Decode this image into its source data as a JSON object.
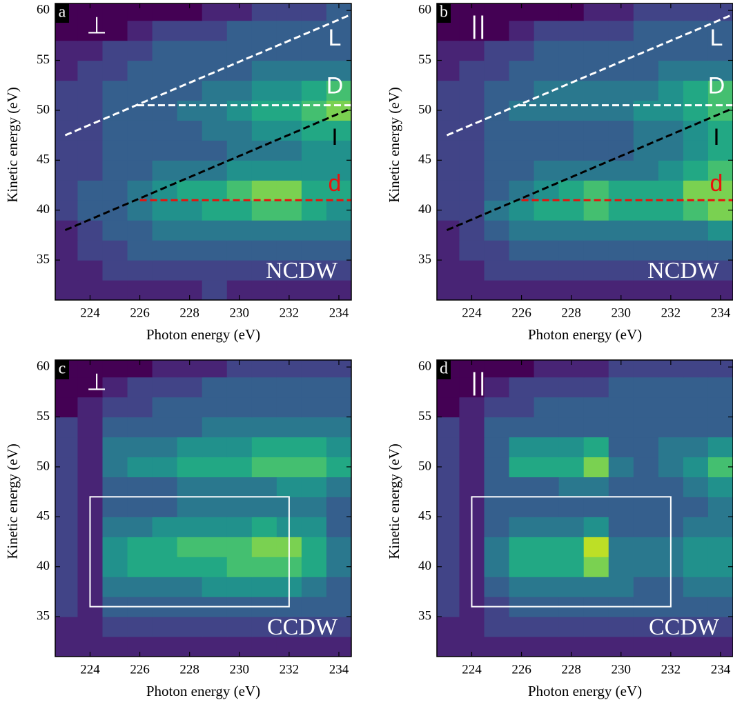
{
  "chart_data": [
    {
      "type": "heatmap",
      "panel": "a",
      "polarization": "⊥",
      "phase": "NCDW",
      "x_label": "Photon energy (eV)",
      "y_label": "Kinetic energy (eV)",
      "xlim": [
        222.6,
        234.5
      ],
      "ylim": [
        31,
        60.7
      ],
      "xticks": [
        224,
        226,
        228,
        230,
        232,
        234
      ],
      "yticks": [
        35,
        40,
        45,
        50,
        55,
        60
      ],
      "x_edges": [
        222.5,
        223.5,
        224.5,
        225.5,
        226.5,
        227.5,
        228.5,
        229.5,
        230.5,
        231.5,
        232.5,
        233.5,
        234.5
      ],
      "y_edges": [
        31,
        33,
        35,
        37,
        39,
        41,
        43,
        45,
        47,
        49,
        51,
        53,
        55,
        57,
        59,
        61
      ],
      "zlim": [
        0,
        10
      ],
      "colormap": [
        "#440154",
        "#482475",
        "#414487",
        "#355f8d",
        "#2a788e",
        "#21918c",
        "#22a884",
        "#44bf70",
        "#7ad151",
        "#bddf26",
        "#fde725"
      ],
      "z": [
        [
          1,
          1,
          1,
          1,
          1,
          1,
          2,
          1,
          1,
          1,
          1,
          1
        ],
        [
          1,
          1,
          2,
          2,
          2,
          2,
          2,
          2,
          2,
          2,
          2,
          2
        ],
        [
          1,
          2,
          2,
          3,
          3,
          3,
          3,
          3,
          3,
          3,
          3,
          3
        ],
        [
          1,
          2,
          3,
          3,
          4,
          4,
          4,
          4,
          4,
          4,
          4,
          4
        ],
        [
          2,
          3,
          3,
          4,
          5,
          5,
          6,
          6,
          7,
          7,
          6,
          5
        ],
        [
          2,
          3,
          3,
          4,
          5,
          6,
          6,
          7,
          8,
          8,
          6,
          6
        ],
        [
          2,
          2,
          3,
          3,
          4,
          4,
          4,
          5,
          5,
          5,
          5,
          5
        ],
        [
          2,
          2,
          3,
          3,
          3,
          3,
          3,
          4,
          4,
          4,
          5,
          5
        ],
        [
          2,
          2,
          3,
          3,
          3,
          3,
          4,
          4,
          5,
          5,
          6,
          6
        ],
        [
          2,
          2,
          3,
          3,
          3,
          4,
          4,
          5,
          6,
          6,
          7,
          8
        ],
        [
          2,
          2,
          3,
          3,
          3,
          3,
          4,
          4,
          5,
          5,
          6,
          7
        ],
        [
          1,
          2,
          2,
          3,
          3,
          3,
          3,
          3,
          4,
          4,
          4,
          4
        ],
        [
          1,
          1,
          2,
          2,
          3,
          3,
          3,
          3,
          3,
          3,
          3,
          3
        ],
        [
          0,
          0,
          0,
          1,
          2,
          2,
          2,
          3,
          3,
          3,
          3,
          3
        ],
        [
          0,
          0,
          0,
          0,
          0,
          0,
          1,
          1,
          2,
          2,
          2,
          3
        ]
      ],
      "lines": [
        {
          "label": "L",
          "color": "#ffffff",
          "x": [
            223,
            234.5
          ],
          "y": [
            47.5,
            59.6
          ]
        },
        {
          "label": "D",
          "color": "#ffffff",
          "x": [
            225.9,
            234.5
          ],
          "y": [
            50.5,
            50.5
          ]
        },
        {
          "label": "I",
          "color": "#000000",
          "x": [
            223,
            234.5
          ],
          "y": [
            38,
            50.2
          ]
        },
        {
          "label": "d",
          "color": "#e8120c",
          "x": [
            226,
            234.5
          ],
          "y": [
            41,
            41
          ]
        }
      ]
    },
    {
      "type": "heatmap",
      "panel": "b",
      "polarization": "||",
      "phase": "NCDW",
      "x_label": "Photon energy (eV)",
      "y_label": "Kinetic energy (eV)",
      "xlim": [
        222.6,
        234.5
      ],
      "ylim": [
        31,
        60.7
      ],
      "xticks": [
        224,
        226,
        228,
        230,
        232,
        234
      ],
      "yticks": [
        35,
        40,
        45,
        50,
        55,
        60
      ],
      "x_edges": [
        222.5,
        223.5,
        224.5,
        225.5,
        226.5,
        227.5,
        228.5,
        229.5,
        230.5,
        231.5,
        232.5,
        233.5,
        234.5
      ],
      "y_edges": [
        31,
        33,
        35,
        37,
        39,
        41,
        43,
        45,
        47,
        49,
        51,
        53,
        55,
        57,
        59,
        61
      ],
      "zlim": [
        0,
        10
      ],
      "colormap": [
        "#440154",
        "#482475",
        "#414487",
        "#355f8d",
        "#2a788e",
        "#21918c",
        "#22a884",
        "#44bf70",
        "#7ad151",
        "#bddf26",
        "#fde725"
      ],
      "z": [
        [
          1,
          1,
          1,
          1,
          1,
          1,
          1,
          1,
          1,
          1,
          1,
          1
        ],
        [
          1,
          1,
          2,
          2,
          2,
          2,
          2,
          2,
          2,
          2,
          2,
          2
        ],
        [
          1,
          2,
          2,
          3,
          3,
          3,
          3,
          3,
          3,
          3,
          3,
          3
        ],
        [
          1,
          2,
          3,
          4,
          4,
          4,
          4,
          4,
          4,
          4,
          4,
          5
        ],
        [
          2,
          2,
          4,
          5,
          6,
          6,
          7,
          6,
          6,
          6,
          7,
          8
        ],
        [
          2,
          2,
          3,
          4,
          5,
          6,
          7,
          6,
          6,
          6,
          8,
          8
        ],
        [
          2,
          2,
          3,
          3,
          4,
          4,
          4,
          4,
          4,
          5,
          6,
          7
        ],
        [
          2,
          2,
          3,
          3,
          3,
          3,
          3,
          3,
          4,
          4,
          5,
          6
        ],
        [
          2,
          2,
          3,
          3,
          3,
          3,
          3,
          3,
          4,
          4,
          5,
          6
        ],
        [
          2,
          2,
          3,
          4,
          4,
          4,
          4,
          4,
          5,
          5,
          6,
          7
        ],
        [
          2,
          2,
          3,
          3,
          4,
          4,
          4,
          4,
          4,
          5,
          6,
          7
        ],
        [
          1,
          2,
          2,
          3,
          3,
          3,
          3,
          3,
          3,
          4,
          4,
          4
        ],
        [
          1,
          1,
          2,
          2,
          3,
          3,
          3,
          3,
          3,
          3,
          3,
          3
        ],
        [
          0,
          0,
          0,
          1,
          2,
          2,
          2,
          2,
          3,
          3,
          3,
          3
        ],
        [
          0,
          0,
          0,
          0,
          0,
          0,
          1,
          1,
          2,
          2,
          2,
          2
        ]
      ],
      "lines": [
        {
          "label": "L",
          "color": "#ffffff",
          "x": [
            223,
            234.5
          ],
          "y": [
            47.5,
            59.6
          ]
        },
        {
          "label": "D",
          "color": "#ffffff",
          "x": [
            225.9,
            234.5
          ],
          "y": [
            50.5,
            50.5
          ]
        },
        {
          "label": "I",
          "color": "#000000",
          "x": [
            223,
            234.5
          ],
          "y": [
            38,
            50.2
          ]
        },
        {
          "label": "d",
          "color": "#e8120c",
          "x": [
            226,
            234.5
          ],
          "y": [
            41,
            41
          ]
        }
      ]
    },
    {
      "type": "heatmap",
      "panel": "c",
      "polarization": "⊥",
      "phase": "CCDW",
      "x_label": "Photon energy (eV)",
      "y_label": "Kinetic energy (eV)",
      "xlim": [
        222.6,
        234.5
      ],
      "ylim": [
        31,
        60.7
      ],
      "xticks": [
        224,
        226,
        228,
        230,
        232,
        234
      ],
      "yticks": [
        35,
        40,
        45,
        50,
        55,
        60
      ],
      "x_edges": [
        222.5,
        223.5,
        224.5,
        225.5,
        226.5,
        227.5,
        228.5,
        229.5,
        230.5,
        231.5,
        232.5,
        233.5,
        234.5
      ],
      "y_edges": [
        31,
        33,
        35,
        37,
        39,
        41,
        43,
        45,
        47,
        49,
        51,
        53,
        55,
        57,
        59,
        61
      ],
      "zlim": [
        0,
        10
      ],
      "colormap": [
        "#440154",
        "#482475",
        "#414487",
        "#355f8d",
        "#2a788e",
        "#21918c",
        "#22a884",
        "#44bf70",
        "#7ad151",
        "#bddf26",
        "#fde725"
      ],
      "z": [
        [
          1,
          1,
          1,
          1,
          1,
          1,
          1,
          1,
          1,
          1,
          1,
          1
        ],
        [
          1,
          1,
          2,
          2,
          2,
          2,
          2,
          2,
          2,
          2,
          2,
          2
        ],
        [
          2,
          1,
          3,
          3,
          3,
          3,
          3,
          3,
          3,
          3,
          3,
          3
        ],
        [
          2,
          1,
          4,
          4,
          4,
          4,
          5,
          5,
          5,
          5,
          4,
          3
        ],
        [
          2,
          1,
          5,
          6,
          6,
          6,
          6,
          7,
          7,
          7,
          6,
          4
        ],
        [
          2,
          1,
          5,
          6,
          6,
          7,
          7,
          7,
          8,
          8,
          6,
          4
        ],
        [
          2,
          1,
          4,
          4,
          5,
          5,
          5,
          5,
          6,
          5,
          5,
          3
        ],
        [
          2,
          1,
          3,
          3,
          3,
          4,
          4,
          4,
          4,
          4,
          4,
          3
        ],
        [
          2,
          1,
          3,
          3,
          3,
          4,
          4,
          4,
          4,
          5,
          5,
          4
        ],
        [
          2,
          1,
          4,
          5,
          5,
          6,
          6,
          6,
          7,
          7,
          7,
          6
        ],
        [
          2,
          1,
          4,
          4,
          4,
          5,
          5,
          5,
          6,
          6,
          6,
          5
        ],
        [
          2,
          1,
          3,
          3,
          3,
          3,
          4,
          4,
          4,
          4,
          4,
          4
        ],
        [
          0,
          1,
          2,
          2,
          3,
          3,
          3,
          3,
          3,
          3,
          3,
          3
        ],
        [
          0,
          0,
          1,
          2,
          2,
          2,
          3,
          3,
          3,
          3,
          3,
          3
        ],
        [
          0,
          0,
          0,
          0,
          1,
          1,
          1,
          2,
          2,
          2,
          2,
          2
        ]
      ],
      "rectangle": {
        "color": "#ffffff",
        "x": [
          224,
          232
        ],
        "y": [
          36,
          47
        ]
      }
    },
    {
      "type": "heatmap",
      "panel": "d",
      "polarization": "||",
      "phase": "CCDW",
      "x_label": "Photon energy (eV)",
      "y_label": "Kinetic energy (eV)",
      "xlim": [
        222.6,
        234.5
      ],
      "ylim": [
        31,
        60.7
      ],
      "xticks": [
        224,
        226,
        228,
        230,
        232,
        234
      ],
      "yticks": [
        35,
        40,
        45,
        50,
        55,
        60
      ],
      "x_edges": [
        222.5,
        223.5,
        224.5,
        225.5,
        226.5,
        227.5,
        228.5,
        229.5,
        230.5,
        231.5,
        232.5,
        233.5,
        234.5
      ],
      "y_edges": [
        31,
        33,
        35,
        37,
        39,
        41,
        43,
        45,
        47,
        49,
        51,
        53,
        55,
        57,
        59,
        61
      ],
      "zlim": [
        0,
        10
      ],
      "colormap": [
        "#440154",
        "#482475",
        "#414487",
        "#355f8d",
        "#2a788e",
        "#21918c",
        "#22a884",
        "#44bf70",
        "#7ad151",
        "#bddf26",
        "#fde725"
      ],
      "z": [
        [
          1,
          1,
          1,
          1,
          1,
          1,
          1,
          1,
          1,
          1,
          1,
          1
        ],
        [
          1,
          1,
          2,
          2,
          2,
          2,
          2,
          2,
          2,
          2,
          2,
          2
        ],
        [
          2,
          1,
          2,
          3,
          3,
          3,
          3,
          3,
          3,
          3,
          3,
          3
        ],
        [
          2,
          1,
          3,
          4,
          4,
          4,
          4,
          4,
          3,
          3,
          4,
          4
        ],
        [
          2,
          1,
          4,
          6,
          6,
          6,
          8,
          4,
          4,
          4,
          5,
          5
        ],
        [
          2,
          1,
          4,
          6,
          6,
          6,
          9,
          4,
          4,
          4,
          5,
          5
        ],
        [
          2,
          1,
          3,
          4,
          4,
          4,
          5,
          3,
          3,
          3,
          4,
          4
        ],
        [
          2,
          1,
          3,
          3,
          3,
          3,
          3,
          3,
          3,
          3,
          3,
          4
        ],
        [
          2,
          1,
          3,
          3,
          3,
          4,
          4,
          3,
          3,
          3,
          4,
          5
        ],
        [
          2,
          1,
          3,
          6,
          6,
          6,
          8,
          4,
          3,
          4,
          5,
          7
        ],
        [
          2,
          1,
          3,
          5,
          5,
          5,
          6,
          3,
          3,
          4,
          4,
          5
        ],
        [
          2,
          1,
          3,
          3,
          3,
          3,
          3,
          3,
          3,
          3,
          3,
          3
        ],
        [
          0,
          1,
          2,
          2,
          3,
          3,
          3,
          3,
          3,
          3,
          3,
          3
        ],
        [
          0,
          0,
          1,
          2,
          2,
          2,
          2,
          3,
          3,
          3,
          3,
          3
        ],
        [
          0,
          0,
          0,
          0,
          1,
          1,
          1,
          2,
          2,
          2,
          2,
          2
        ]
      ],
      "rectangle": {
        "color": "#ffffff",
        "x": [
          224,
          232
        ],
        "y": [
          36,
          47
        ]
      }
    }
  ]
}
